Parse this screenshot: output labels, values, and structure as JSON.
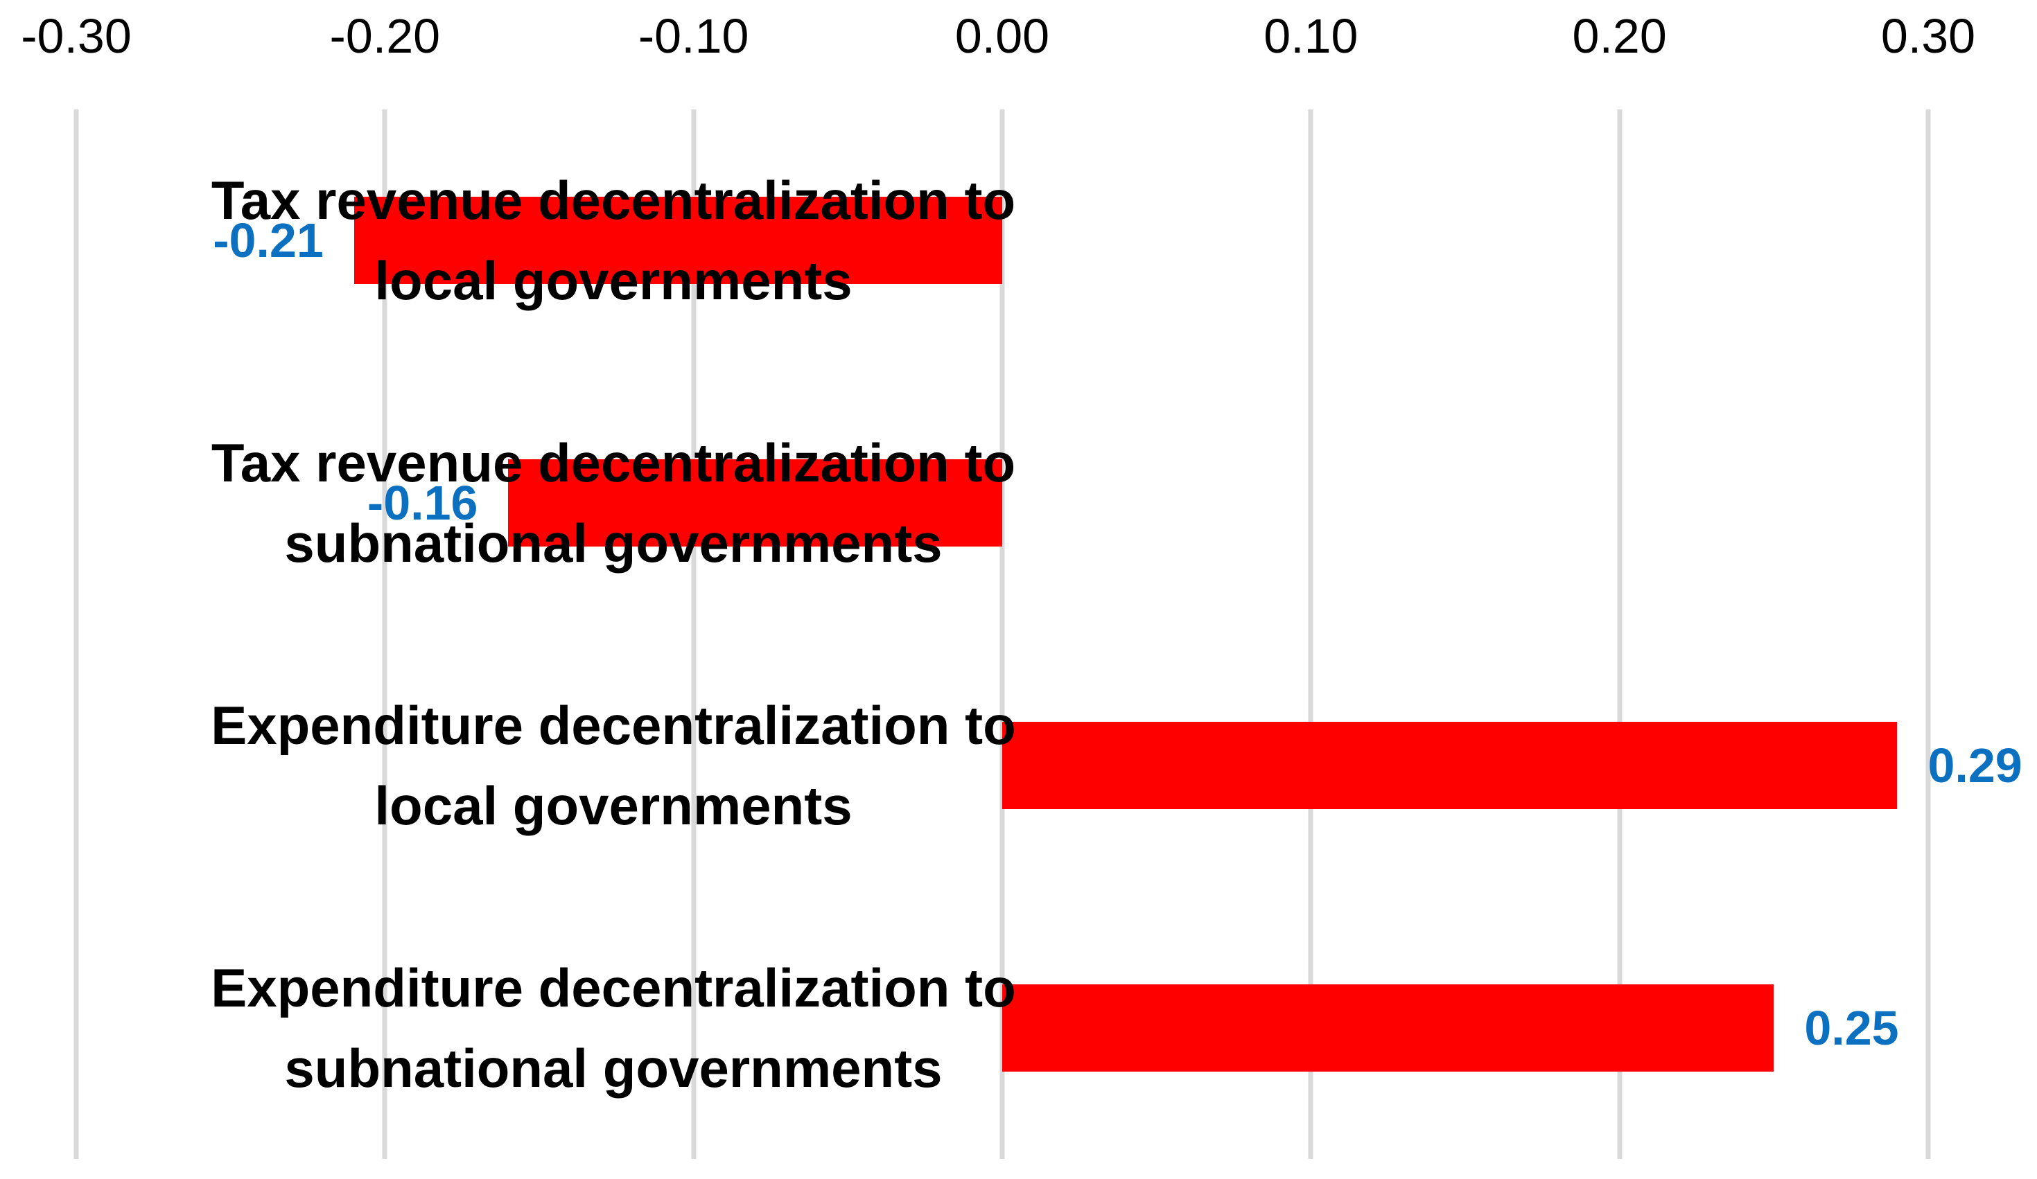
{
  "chart_data": {
    "type": "bar",
    "orientation": "horizontal",
    "title": "",
    "xlabel": "",
    "ylabel": "",
    "xlim": [
      -0.3,
      0.3
    ],
    "grid": true,
    "legend": false,
    "x_ticks": [
      "-0.30",
      "-0.20",
      "-0.10",
      "0.00",
      "0.10",
      "0.20",
      "0.30"
    ],
    "x_tick_values": [
      -0.3,
      -0.2,
      -0.1,
      0.0,
      0.1,
      0.2,
      0.3
    ],
    "categories": [
      "Tax revenue decentralization to local governments",
      "Tax revenue decentralization to subnational governments",
      "Expenditure decentralization to local governments",
      "Expenditure decentralization to subnational governments"
    ],
    "category_lines": [
      [
        "Tax revenue decentralization to",
        "local governments"
      ],
      [
        "Tax revenue decentralization to",
        "subnational governments"
      ],
      [
        "Expenditure decentralization to",
        "local governments"
      ],
      [
        "Expenditure decentralization to",
        "subnational governments"
      ]
    ],
    "values": [
      -0.21,
      -0.16,
      0.29,
      0.25
    ],
    "data_labels": [
      "-0.21",
      "-0.16",
      "0.29",
      "0.25"
    ],
    "bar_color": "#FF0000",
    "data_label_color": "#0B70C0",
    "gridline_color": "#D9D9D9",
    "tick_label_color": "#000000",
    "category_label_color": "#000000"
  }
}
